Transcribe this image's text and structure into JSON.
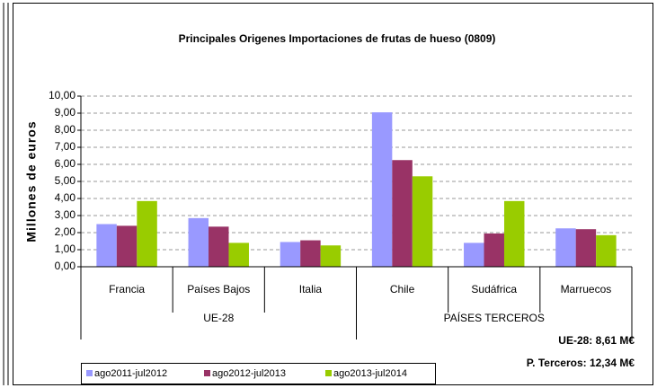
{
  "chart_data": {
    "type": "bar",
    "title": "Principales Origenes Importaciones de frutas de hueso (0809)",
    "y_label": "Millones de euros",
    "groups": [
      {
        "name": "UE-28",
        "categories": [
          "Francia",
          "Países Bajos",
          "Italia"
        ]
      },
      {
        "name": "PAÍSES TERCEROS",
        "categories": [
          "Chile",
          "Sudáfrica",
          "Marruecos"
        ]
      }
    ],
    "series": [
      {
        "name": "ago2011-jul2012",
        "color": "#9999ff",
        "values": [
          2.5,
          2.85,
          1.45,
          9.05,
          1.4,
          2.25
        ]
      },
      {
        "name": "ago2012-jul2013",
        "color": "#993366",
        "values": [
          2.4,
          2.35,
          1.55,
          6.25,
          1.95,
          2.2
        ]
      },
      {
        "name": "ago2013-jul2014",
        "color": "#99cc00",
        "values": [
          3.85,
          1.4,
          1.25,
          5.3,
          3.85,
          1.85
        ]
      }
    ],
    "ylim": [
      0,
      10
    ],
    "yticks": [
      {
        "value": 0,
        "label": "0,00"
      },
      {
        "value": 1,
        "label": "1,00"
      },
      {
        "value": 2,
        "label": "2,00"
      },
      {
        "value": 3,
        "label": "3,00"
      },
      {
        "value": 4,
        "label": "4,00"
      },
      {
        "value": 5,
        "label": "5,00"
      },
      {
        "value": 6,
        "label": "6,00"
      },
      {
        "value": 7,
        "label": "7,00"
      },
      {
        "value": 8,
        "label": "8,00"
      },
      {
        "value": 9,
        "label": "9,00"
      },
      {
        "value": 10,
        "label": "10,00"
      }
    ],
    "grid": true,
    "annotations": [
      "UE-28: 8,61  M€",
      "P. Terceros: 12,34 M€"
    ]
  }
}
